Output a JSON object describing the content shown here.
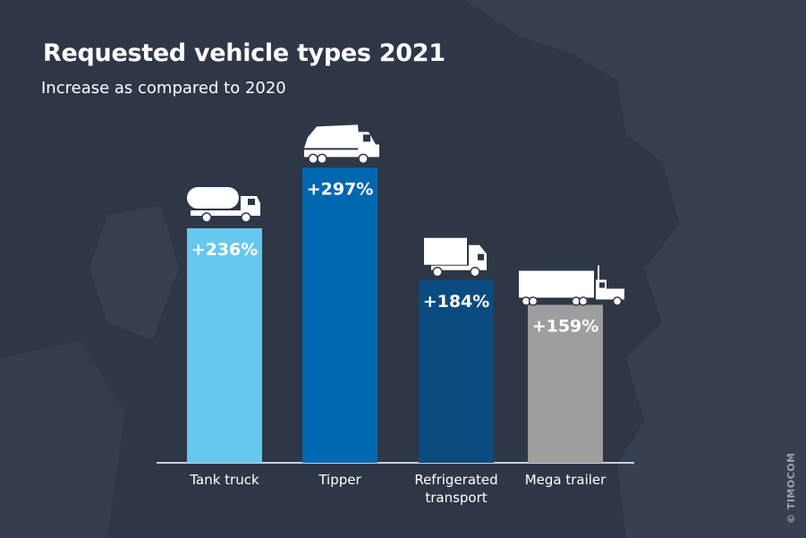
{
  "chart_data": {
    "type": "bar",
    "title": "Requested vehicle types 2021",
    "subtitle": "Increase as compared to 2020",
    "categories": [
      "Tank truck",
      "Tipper",
      "Refrigerated transport",
      "Mega trailer"
    ],
    "category_lines": [
      [
        "Tank truck"
      ],
      [
        "Tipper"
      ],
      [
        "Refrigerated",
        "transport"
      ],
      [
        "Mega trailer"
      ]
    ],
    "values": [
      236,
      297,
      184,
      159
    ],
    "data_labels": [
      "+236%",
      "+297%",
      "+184%",
      "+159%"
    ],
    "colors": [
      "#66c8ee",
      "#0067b1",
      "#0b4b80",
      "#9e9e9e"
    ],
    "icons": [
      "tank-truck-icon",
      "tipper-truck-icon",
      "refrigerated-truck-icon",
      "mega-trailer-icon"
    ],
    "unit": "%",
    "grid": false,
    "legend": "none"
  },
  "copyright": "© TIMOCOM"
}
